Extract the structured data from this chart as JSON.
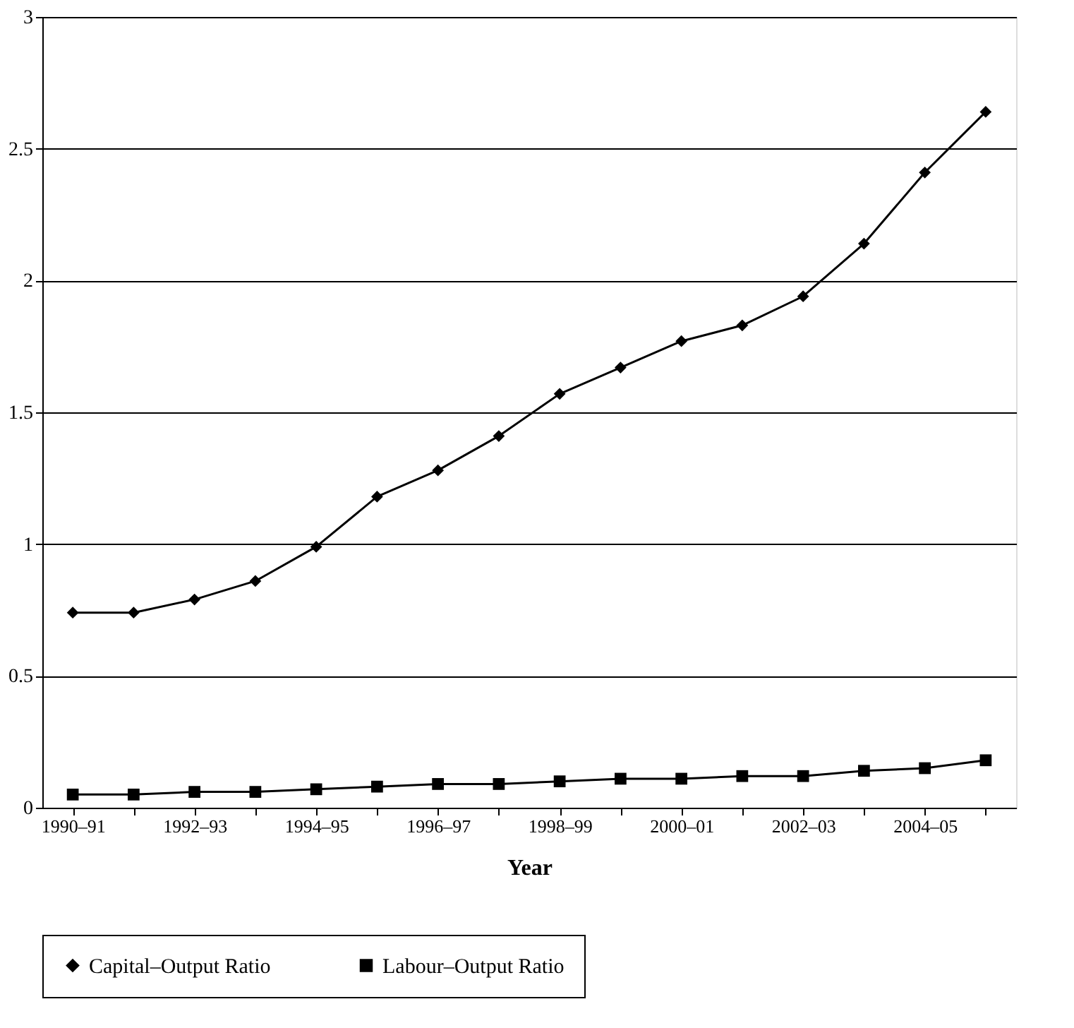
{
  "chart_data": {
    "type": "line",
    "xlabel": "Year",
    "categories": [
      "1990–91",
      null,
      "1992–93",
      null,
      "1994–95",
      null,
      "1996–97",
      null,
      "1998–99",
      null,
      "2000–01",
      null,
      "2002–03",
      null,
      "2004–05",
      null
    ],
    "series": [
      {
        "name": "Capital–Output Ratio",
        "color": "#000000",
        "marker": "diamond",
        "values": [
          0.74,
          0.74,
          0.79,
          0.86,
          0.99,
          1.18,
          1.28,
          1.41,
          1.57,
          1.67,
          1.77,
          1.83,
          1.94,
          2.14,
          2.41,
          2.64
        ]
      },
      {
        "name": "Labour–Output Ratio",
        "color": "#000000",
        "marker": "square",
        "values": [
          0.05,
          0.05,
          0.06,
          0.06,
          0.07,
          0.08,
          0.09,
          0.09,
          0.1,
          0.11,
          0.11,
          0.12,
          0.12,
          0.14,
          0.15,
          0.18
        ]
      }
    ],
    "ylim": [
      0,
      3
    ],
    "yticks": [
      0,
      0.5,
      1,
      1.5,
      2,
      2.5,
      3
    ],
    "grid": "y",
    "legend": "bottom",
    "line_style": "solid"
  }
}
